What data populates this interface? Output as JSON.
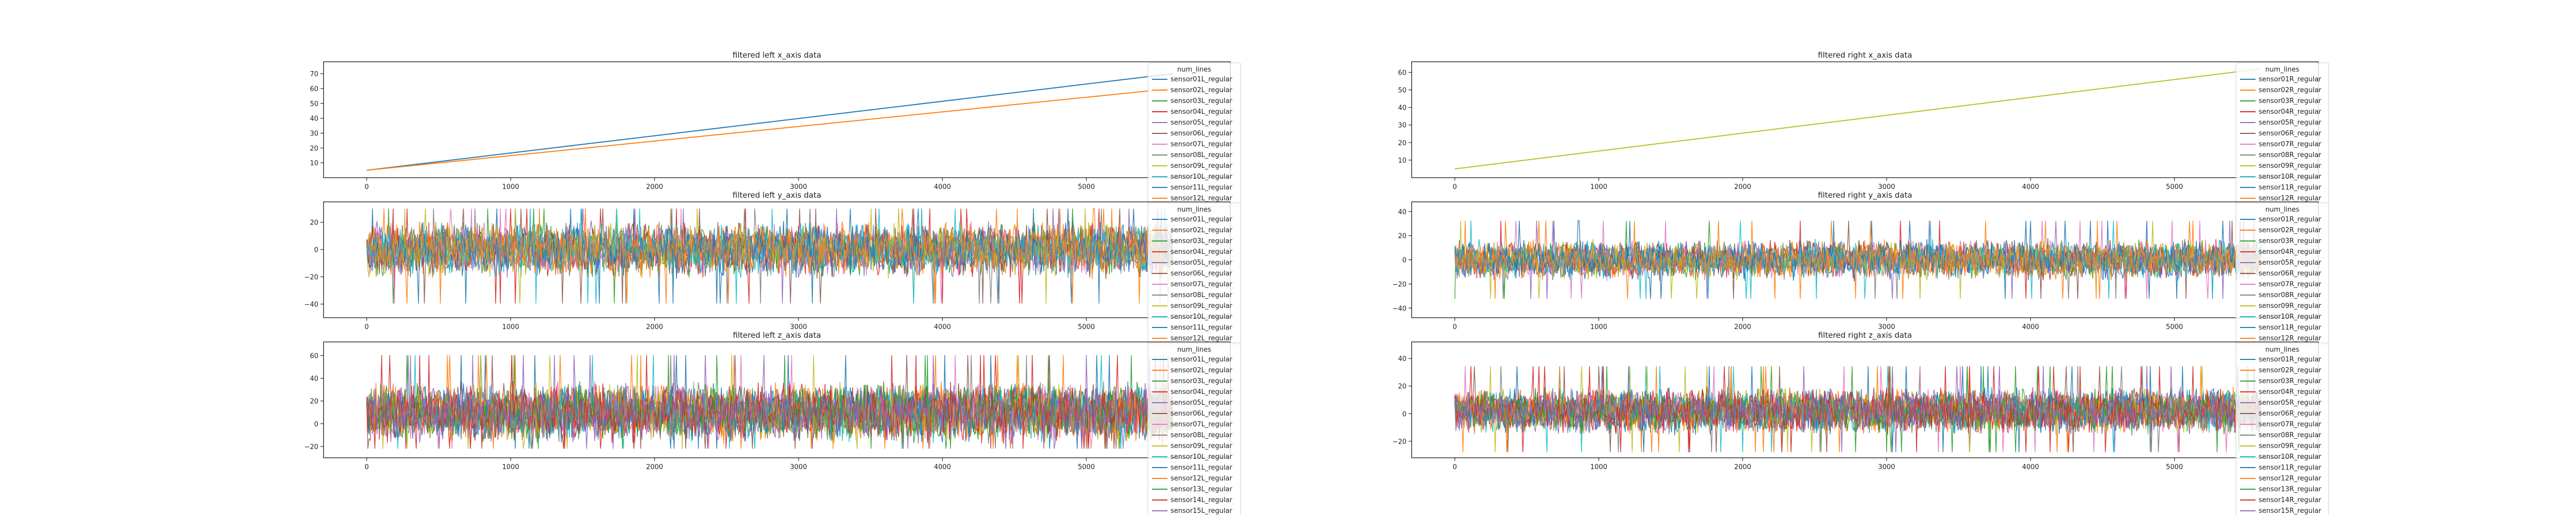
{
  "figure": {
    "background": "#ffffff"
  },
  "chart_data": [
    {
      "id": "left_x",
      "type": "line",
      "title": "filtered left x_axis data",
      "xlabel": "",
      "ylabel": "",
      "xlim": [
        -300,
        6000
      ],
      "ylim": [
        0,
        78
      ],
      "x_ticks": [
        0,
        1000,
        2000,
        3000,
        4000,
        5000
      ],
      "y_ticks": [
        10,
        20,
        30,
        40,
        50,
        60,
        70
      ],
      "grid": false,
      "legend": {
        "title": "num_lines",
        "placement": "upper-right",
        "entries": [
          "sensor01L_regular",
          "sensor02L_regular",
          "sensor03L_regular",
          "sensor04L_regular",
          "sensor05L_regular",
          "sensor06L_regular",
          "sensor07L_regular",
          "sensor08L_regular",
          "sensor09L_regular",
          "sensor10L_regular",
          "sensor11L_regular",
          "sensor12L_regular"
        ]
      },
      "series_style": "linear",
      "series": [
        {
          "name": "sensor01L_regular",
          "x": [
            0,
            5600
          ],
          "values": [
            5,
            70
          ]
        },
        {
          "name": "sensor02L_regular",
          "x": [
            0,
            5600
          ],
          "values": [
            5,
            60
          ]
        }
      ]
    },
    {
      "id": "left_y",
      "type": "line",
      "title": "filtered left y_axis data",
      "xlabel": "",
      "ylabel": "",
      "xlim": [
        -300,
        6000
      ],
      "ylim": [
        -50,
        35
      ],
      "x_ticks": [
        0,
        1000,
        2000,
        3000,
        4000,
        5000
      ],
      "y_ticks": [
        -40,
        -20,
        0,
        20
      ],
      "grid": false,
      "legend": {
        "title": "num_lines",
        "placement": "upper-right",
        "entries": [
          "sensor01L_regular",
          "sensor02L_regular",
          "sensor03L_regular",
          "sensor04L_regular",
          "sensor05L_regular",
          "sensor06L_regular",
          "sensor07L_regular",
          "sensor08L_regular",
          "sensor09L_regular",
          "sensor10L_regular",
          "sensor11L_regular",
          "sensor12L_regular"
        ]
      },
      "series_style": "noise",
      "noise": {
        "x_range": [
          0,
          5600
        ],
        "center": 0,
        "amplitude": 22,
        "min": -45,
        "max": 30,
        "series_count": 12
      }
    },
    {
      "id": "left_z",
      "type": "line",
      "title": "filtered left z_axis data",
      "xlabel": "",
      "ylabel": "",
      "xlim": [
        -300,
        6000
      ],
      "ylim": [
        -30,
        72
      ],
      "x_ticks": [
        0,
        1000,
        2000,
        3000,
        4000,
        5000
      ],
      "y_ticks": [
        -20,
        0,
        20,
        40,
        60
      ],
      "grid": false,
      "legend": {
        "title": "num_lines",
        "placement": "upper-right",
        "entries": [
          "sensor01L_regular",
          "sensor02L_regular",
          "sensor03L_regular",
          "sensor04L_regular",
          "sensor05L_regular",
          "sensor06L_regular",
          "sensor07L_regular",
          "sensor08L_regular",
          "sensor09L_regular",
          "sensor10L_regular",
          "sensor11L_regular",
          "sensor12L_regular",
          "sensor13L_regular",
          "sensor14L_regular",
          "sensor15L_regular"
        ]
      },
      "series_style": "noise",
      "noise": {
        "x_range": [
          0,
          5600
        ],
        "center": 10,
        "amplitude": 28,
        "min": -22,
        "max": 68,
        "series_count": 15
      }
    },
    {
      "id": "right_x",
      "type": "line",
      "title": "filtered right x_axis data",
      "xlabel": "",
      "ylabel": "",
      "xlim": [
        -300,
        6000
      ],
      "ylim": [
        0,
        66
      ],
      "x_ticks": [
        0,
        1000,
        2000,
        3000,
        4000,
        5000
      ],
      "y_ticks": [
        10,
        20,
        30,
        40,
        50,
        60
      ],
      "grid": false,
      "legend": {
        "title": "num_lines",
        "placement": "upper-right",
        "entries": [
          "sensor01R_regular",
          "sensor02R_regular",
          "sensor03R_regular",
          "sensor04R_regular",
          "sensor05R_regular",
          "sensor06R_regular",
          "sensor07R_regular",
          "sensor08R_regular",
          "sensor09R_regular",
          "sensor10R_regular",
          "sensor11R_regular",
          "sensor12R_regular"
        ]
      },
      "series_style": "linear",
      "series": [
        {
          "name": "sensor09R_regular",
          "x": [
            0,
            5600
          ],
          "values": [
            5,
            62
          ]
        }
      ]
    },
    {
      "id": "right_y",
      "type": "line",
      "title": "filtered right y_axis data",
      "xlabel": "",
      "ylabel": "",
      "xlim": [
        -300,
        6000
      ],
      "ylim": [
        -48,
        48
      ],
      "x_ticks": [
        0,
        1000,
        2000,
        3000,
        4000,
        5000
      ],
      "y_ticks": [
        -40,
        -20,
        0,
        20,
        40
      ],
      "grid": false,
      "legend": {
        "title": "num_lines",
        "placement": "upper-right",
        "entries": [
          "sensor01R_regular",
          "sensor02R_regular",
          "sensor03R_regular",
          "sensor04R_regular",
          "sensor05R_regular",
          "sensor06R_regular",
          "sensor07R_regular",
          "sensor08R_regular",
          "sensor09R_regular",
          "sensor10R_regular",
          "sensor11R_regular",
          "sensor12R_regular"
        ]
      },
      "series_style": "noise",
      "noise": {
        "x_range": [
          0,
          5600
        ],
        "center": 0,
        "amplitude": 18,
        "min": -38,
        "max": 42,
        "series_count": 12
      }
    },
    {
      "id": "right_z",
      "type": "line",
      "title": "filtered right z_axis data",
      "xlabel": "",
      "ylabel": "",
      "xlim": [
        -300,
        6000
      ],
      "ylim": [
        -32,
        52
      ],
      "x_ticks": [
        0,
        1000,
        2000,
        3000,
        4000,
        5000
      ],
      "y_ticks": [
        -20,
        0,
        20,
        40
      ],
      "grid": false,
      "legend": {
        "title": "num_lines",
        "placement": "upper-right",
        "entries": [
          "sensor01R_regular",
          "sensor02R_regular",
          "sensor03R_regular",
          "sensor04R_regular",
          "sensor05R_regular",
          "sensor06R_regular",
          "sensor07R_regular",
          "sensor08R_regular",
          "sensor09R_regular",
          "sensor10R_regular",
          "sensor11R_regular",
          "sensor12R_regular",
          "sensor13R_regular",
          "sensor14R_regular",
          "sensor15R_regular"
        ]
      },
      "series_style": "noise",
      "noise": {
        "x_range": [
          0,
          5600
        ],
        "center": 2,
        "amplitude": 18,
        "min": -28,
        "max": 48,
        "series_count": 15
      }
    }
  ],
  "palette": [
    "#1f77b4",
    "#ff7f0e",
    "#2ca02c",
    "#d62728",
    "#9467bd",
    "#8c564b",
    "#e377c2",
    "#7f7f7f",
    "#bcbd22",
    "#17becf",
    "#1f77b4",
    "#ff7f0e",
    "#2ca02c",
    "#d62728",
    "#9467bd"
  ]
}
